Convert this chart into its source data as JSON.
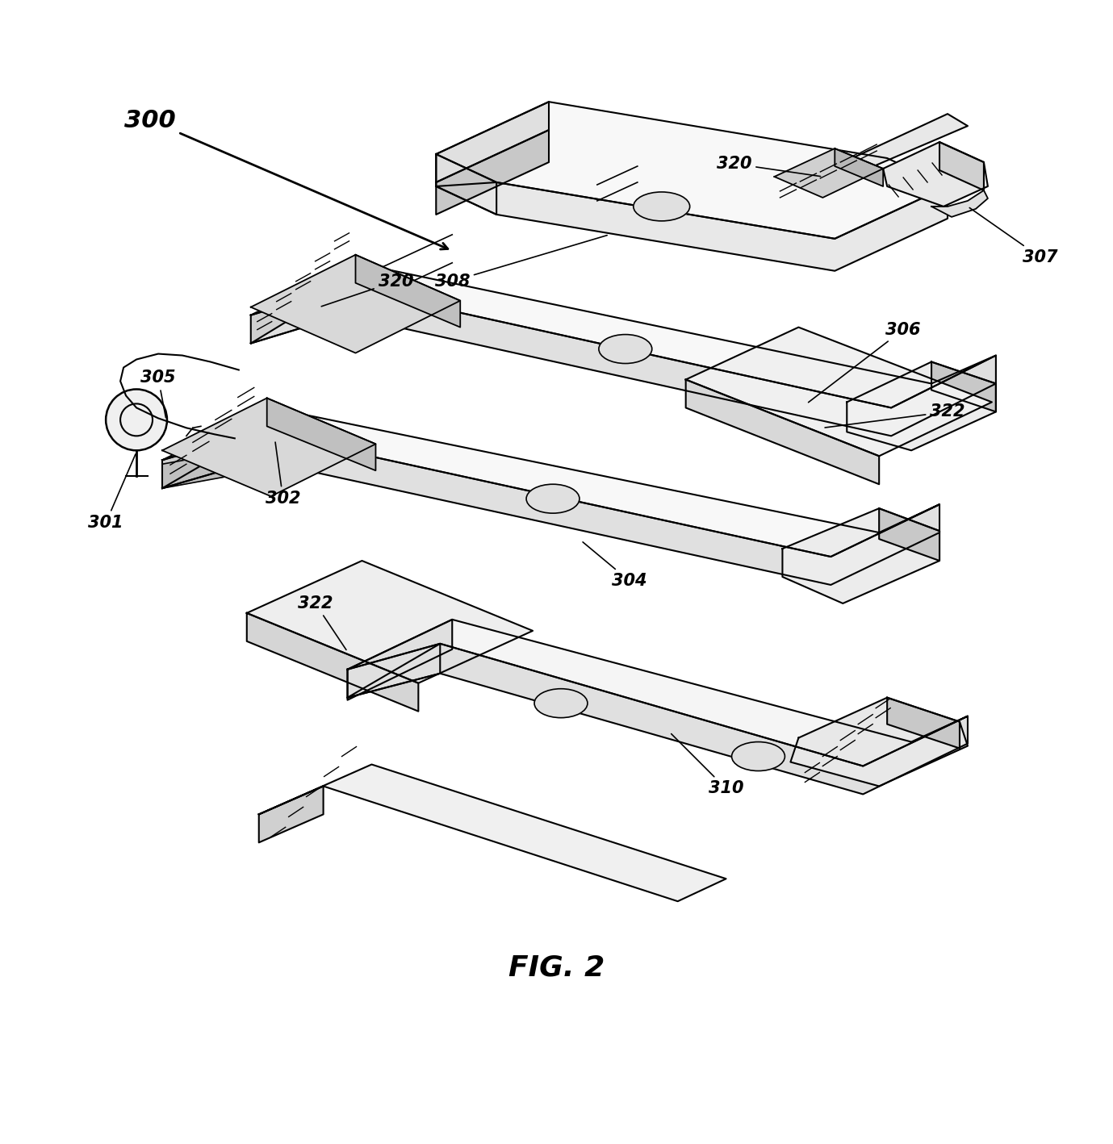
{
  "title": "FIG. 2",
  "bg_color": "#ffffff",
  "line_color": "#000000",
  "label_color": "#000000",
  "fig_width": 13.79,
  "fig_height": 14.18,
  "dpi": 100
}
